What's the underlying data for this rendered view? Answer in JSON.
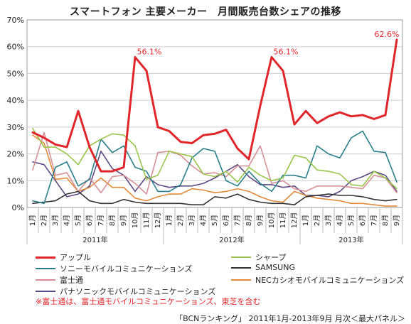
{
  "chart_data": {
    "type": "line",
    "title": "スマートフォン 主要メーカー　月間販売台数シェアの推移",
    "x": [
      "1月",
      "2月",
      "3月",
      "4月",
      "5月",
      "6月",
      "7月",
      "8月",
      "9月",
      "10月",
      "11月",
      "12月",
      "1月",
      "2月",
      "3月",
      "4月",
      "5月",
      "6月",
      "7月",
      "8月",
      "9月",
      "10月",
      "11月",
      "12月",
      "1月",
      "2月",
      "3月",
      "4月",
      "5月",
      "6月",
      "7月",
      "8月",
      "9月"
    ],
    "year_groups": [
      {
        "label": "2011年",
        "start": 0,
        "end": 11
      },
      {
        "label": "2012年",
        "start": 12,
        "end": 23
      },
      {
        "label": "2013年",
        "start": 24,
        "end": 32
      }
    ],
    "y_ticks": [
      "0%",
      "10%",
      "20%",
      "30%",
      "40%",
      "50%",
      "60%",
      "70%"
    ],
    "ylim": [
      0,
      70
    ],
    "grid": true,
    "annotations": [
      {
        "text": "56.1%",
        "index": 9,
        "value": 56.1
      },
      {
        "text": "56.1%",
        "index": 21,
        "value": 56.1
      },
      {
        "text": "62.6%",
        "index": 32,
        "value": 62.6
      }
    ],
    "series": [
      {
        "name": "アップル",
        "color": "#e0262a",
        "width": 3,
        "values": [
          28,
          26,
          23.5,
          22.5,
          36,
          22.5,
          13.5,
          13.5,
          15,
          56.1,
          51,
          30,
          28.5,
          24.5,
          24,
          27,
          27.5,
          29,
          22,
          18,
          38,
          56.1,
          51,
          31,
          36,
          31.5,
          34,
          35.5,
          34,
          34.5,
          33,
          34.5,
          62.6
        ]
      },
      {
        "name": "シャープ",
        "color": "#98c54a",
        "width": 1.6,
        "values": [
          29.5,
          22.5,
          22.5,
          20,
          16,
          23,
          25.5,
          27.5,
          27,
          23,
          10.5,
          12,
          21,
          20,
          19,
          12.5,
          11.5,
          13.5,
          9.5,
          15,
          12,
          10,
          11,
          19.5,
          18.5,
          14,
          13.5,
          12.5,
          8.5,
          8,
          13.5,
          11,
          7
        ]
      },
      {
        "name": "ソニーモバイルコミュニケーションズ",
        "color": "#2a7f8a",
        "width": 1.6,
        "values": [
          2.5,
          1.5,
          15,
          17,
          8,
          10.5,
          25.5,
          20.5,
          23,
          15,
          13.5,
          6,
          6,
          8.5,
          18.5,
          22,
          21,
          10,
          8,
          13.5,
          9,
          6,
          12,
          12,
          11,
          23,
          20,
          18.5,
          26,
          28.5,
          21,
          20.5,
          9.5
        ]
      },
      {
        "name": "SAMSUNG",
        "color": "#333333",
        "width": 1.6,
        "values": [
          1.5,
          2,
          2.5,
          5,
          6,
          2.5,
          1.5,
          1.5,
          3,
          2,
          1.5,
          1.5,
          1.5,
          1.5,
          1,
          1,
          4,
          3.5,
          5,
          3,
          2,
          1.5,
          1.5,
          1,
          4,
          4.5,
          5,
          4.5,
          4.5,
          4,
          3,
          2.5,
          3
        ]
      },
      {
        "name": "富士通",
        "color": "#d68f96",
        "width": 1.6,
        "values": [
          14,
          28,
          12,
          13,
          6,
          11,
          5.5,
          11.5,
          12,
          9,
          5,
          20.5,
          21,
          19.5,
          15.5,
          12.5,
          13,
          11.5,
          15.5,
          15.5,
          23,
          9,
          10,
          7,
          6,
          8,
          8,
          8,
          7.5,
          7,
          12,
          11,
          5.5
        ]
      },
      {
        "name": "NECカシオモバイルコミュニケーションズ",
        "color": "#e08a3a",
        "width": 1.6,
        "values": [
          27,
          24,
          10.5,
          11,
          6,
          7.5,
          11,
          7.5,
          7.5,
          3.5,
          2.5,
          4,
          5,
          5,
          7,
          6.5,
          5.5,
          6,
          7,
          6,
          4,
          2.5,
          2,
          6,
          4.5,
          3.5,
          3,
          2.5,
          1.5,
          1.5,
          1,
          0.5,
          0.5
        ]
      },
      {
        "name": "パナソニックモバイルコミュニケーションズ",
        "color": "#5e4a86",
        "width": 1.6,
        "values": [
          17,
          16,
          10,
          4,
          5,
          8,
          21,
          14.5,
          12,
          6,
          11.5,
          8.5,
          7.5,
          8,
          8,
          9,
          11,
          13.5,
          16,
          11.5,
          8.5,
          8.5,
          7.5,
          8,
          4.5,
          4.5,
          4,
          6,
          10,
          11.5,
          13.5,
          12,
          6
        ]
      }
    ]
  },
  "footnote": "※富士通は、富士通モバイルコミュニケーションズ、東芝を含む",
  "source": "「BCNランキング」 2011年1月-2013年9月 月次＜最大パネル＞"
}
